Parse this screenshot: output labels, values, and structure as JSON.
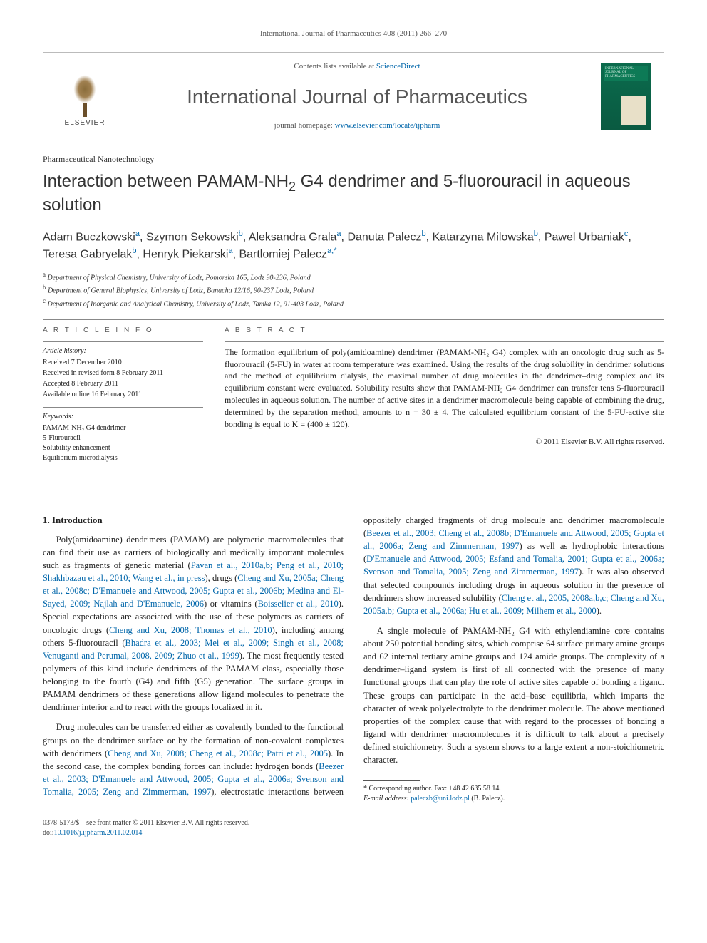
{
  "running_header": "International Journal of Pharmaceutics 408 (2011) 266–270",
  "masthead": {
    "contents_prefix": "Contents lists available at ",
    "contents_link": "ScienceDirect",
    "journal_title": "International Journal of Pharmaceutics",
    "homepage_prefix": "journal homepage: ",
    "homepage_link": "www.elsevier.com/locate/ijpharm",
    "publisher_logo": "ELSEVIER",
    "cover_label": "INTERNATIONAL JOURNAL OF PHARMACEUTICS"
  },
  "article_type": "Pharmaceutical Nanotechnology",
  "title_pre": "Interaction between PAMAM-NH",
  "title_sub": "2",
  "title_post": " G4 dendrimer and 5-fluorouracil in aqueous solution",
  "authors_html": "Adam Buczkowski<sp>a</sp>, Szymon Sekowski<sp>b</sp>, Aleksandra Grala<sp>a</sp>, Danuta Palecz<sp>b</sp>, Katarzyna Milowska<sp>b</sp>, Pawel Urbaniak<sp>c</sp>, Teresa Gabryelak<sp>b</sp>, Henryk Piekarski<sp>a</sp>, Bartlomiej Palecz<sp>a,*</sp>",
  "affiliations": [
    {
      "sup": "a",
      "text": "Department of Physical Chemistry, University of Lodz, Pomorska 165, Lodz 90-236, Poland"
    },
    {
      "sup": "b",
      "text": "Department of General Biophysics, University of Lodz, Banacha 12/16, 90-237 Lodz, Poland"
    },
    {
      "sup": "c",
      "text": "Department of Inorganic and Analytical Chemistry, University of Lodz, Tamka 12, 91-403 Lodz, Poland"
    }
  ],
  "articleinfo_head": "A R T I C L E   I N F O",
  "abstract_head": "A B S T R A C T",
  "history_label": "Article history:",
  "history": [
    "Received 7 December 2010",
    "Received in revised form 8 February 2011",
    "Accepted 8 February 2011",
    "Available online 16 February 2011"
  ],
  "keywords_label": "Keywords:",
  "keywords": [
    "PAMAM-NH₂ G4 dendrimer",
    "5-Flurouracil",
    "Solubility enhancement",
    "Equilibrium microdialysis"
  ],
  "abstract": "The formation equilibrium of poly(amidoamine) dendrimer (PAMAM-NH₂ G4) complex with an oncologic drug such as 5-fluorouracil (5-FU) in water at room temperature was examined. Using the results of the drug solubility in dendrimer solutions and the method of equilibrium dialysis, the maximal number of drug molecules in the dendrimer–drug complex and its equilibrium constant were evaluated. Solubility results show that PAMAM-NH₂ G4 dendrimer can transfer tens 5-fluorouracil molecules in aqueous solution. The number of active sites in a dendrimer macromolecule being capable of combining the drug, determined by the separation method, amounts to n = 30 ± 4. The calculated equilibrium constant of the 5-FU-active site bonding is equal to K = (400 ± 120).",
  "copyright": "© 2011 Elsevier B.V. All rights reserved.",
  "section1_head": "1. Introduction",
  "body": {
    "p1a": "Poly(amidoamine) dendrimers (PAMAM) are polymeric macromolecules that can find their use as carriers of biologically and medically important molecules such as fragments of genetic material (",
    "p1_cite1": "Pavan et al., 2010a,b; Peng et al., 2010; Shakhbazau et al., 2010; Wang et al., in press",
    "p1b": "), drugs (",
    "p1_cite2": "Cheng and Xu, 2005a; Cheng et al., 2008c; D'Emanuele and Attwood, 2005; Gupta et al., 2006b; Medina and El-Sayed, 2009; Najlah and D'Emanuele, 2006",
    "p1c": ") or vitamins (",
    "p1_cite3": "Boisselier et al., 2010",
    "p1d": "). Special expectations are associated with the use of these polymers as carriers of oncologic drugs (",
    "p1_cite4": "Cheng and Xu, 2008; Thomas et al., 2010",
    "p1e": "), including among others 5-fluorouracil (",
    "p1_cite5": "Bhadra et al., 2003; Mei et al., 2009; Singh et al., 2008; Venuganti and Perumal, 2008, 2009; Zhuo et al., 1999",
    "p1f": "). The most frequently tested polymers of this kind include dendrimers of the PAMAM class, especially those belonging to the fourth (G4) and fifth (G5) generation. The surface groups in PAMAM dendrimers of these generations allow ligand molecules to penetrate the dendrimer interior and to react with the groups localized in it.",
    "p2a": "Drug molecules can be transferred either as covalently bonded to the functional groups on the dendrimer surface or by the formation of non-covalent complexes with dendrimers (",
    "p2_cite1": "Cheng and Xu, 2008; Cheng et al., 2008c; Patri et al., 2005",
    "p2b": "). In the second case, the complex bonding forces can include: hydrogen bonds (",
    "p2_cite2": "Beezer et al., 2003; D'Emanuele and Attwood, 2005; Gupta et al., 2006a; Svenson and Tomalia, 2005; Zeng and Zimmerman, 1997",
    "p2c": "), electrostatic interactions between oppositely charged fragments of drug molecule and dendrimer macromolecule (",
    "p2_cite3": "Beezer et al., 2003; Cheng et al., 2008b; D'Emanuele and Attwood, 2005; Gupta et al., 2006a; Zeng and Zimmerman, 1997",
    "p2d": ") as well as hydrophobic interactions (",
    "p2_cite4": "D'Emanuele and Attwood, 2005; Esfand and Tomalia, 2001; Gupta et al., 2006a; Svenson and Tomalia, 2005; Zeng and Zimmerman, 1997",
    "p2e": "). It was also observed that selected compounds including drugs in aqueous solution in the presence of dendrimers show increased solubility (",
    "p2_cite5": "Cheng et al., 2005, 2008a,b,c; Cheng and Xu, 2005a,b; Gupta et al., 2006a; Hu et al., 2009; Milhem et al., 2000",
    "p2f": ").",
    "p3": "A single molecule of PAMAM-NH₂ G4 with ethylendiamine core contains about 250 potential bonding sites, which comprise 64 surface primary amine groups and 62 internal tertiary amine groups and 124 amide groups. The complexity of a dendrimer–ligand system is first of all connected with the presence of many functional groups that can play the role of active sites capable of bonding a ligand. These groups can participate in the acid–base equilibria, which imparts the character of weak polyelectrolyte to the dendrimer molecule. The above mentioned properties of the complex cause that with regard to the processes of bonding a ligand with dendrimer macromolecules it is difficult to talk about a precisely defined stoichiometry. Such a system shows to a large extent a non-stoichiometric character."
  },
  "footnote": {
    "corr": "* Corresponding author. Fax: +48 42 635 58 14.",
    "email_label": "E-mail address:",
    "email": "paleczb@uni.lodz.pl",
    "email_who": "(B. Palecz)."
  },
  "footer": {
    "line1": "0378-5173/$ – see front matter © 2011 Elsevier B.V. All rights reserved.",
    "doi_label": "doi:",
    "doi": "10.1016/j.ijpharm.2011.02.014"
  },
  "colors": {
    "link": "#0066aa",
    "rule": "#888888",
    "text": "#222222",
    "muted": "#555555",
    "cover_bg": "#0b6b4d"
  }
}
